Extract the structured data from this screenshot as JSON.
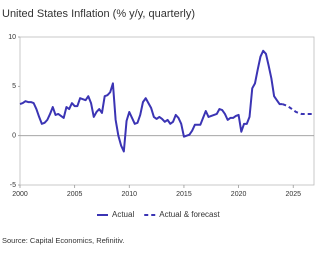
{
  "chart_data": {
    "type": "line",
    "title": "United States Inflation (% y/y, quarterly)",
    "source": "Source: Capital Economics, Refinitiv.",
    "x": [
      2000,
      2000.25,
      2000.5,
      2000.75,
      2001,
      2001.25,
      2001.5,
      2001.75,
      2002,
      2002.25,
      2002.5,
      2002.75,
      2003,
      2003.25,
      2003.5,
      2003.75,
      2004,
      2004.25,
      2004.5,
      2004.75,
      2005,
      2005.25,
      2005.5,
      2005.75,
      2006,
      2006.25,
      2006.5,
      2006.75,
      2007,
      2007.25,
      2007.5,
      2007.75,
      2008,
      2008.25,
      2008.5,
      2008.75,
      2009,
      2009.25,
      2009.5,
      2009.75,
      2010,
      2010.25,
      2010.5,
      2010.75,
      2011,
      2011.25,
      2011.5,
      2011.75,
      2012,
      2012.25,
      2012.5,
      2012.75,
      2013,
      2013.25,
      2013.5,
      2013.75,
      2014,
      2014.25,
      2014.5,
      2014.75,
      2015,
      2015.25,
      2015.5,
      2015.75,
      2016,
      2016.25,
      2016.5,
      2016.75,
      2017,
      2017.25,
      2017.5,
      2017.75,
      2018,
      2018.25,
      2018.5,
      2018.75,
      2019,
      2019.25,
      2019.5,
      2019.75,
      2020,
      2020.25,
      2020.5,
      2020.75,
      2021,
      2021.25,
      2021.5,
      2021.75,
      2022,
      2022.25,
      2022.5,
      2022.75,
      2023,
      2023.25,
      2023.5,
      2023.75,
      2024,
      2024.25,
      2024.5,
      2024.75,
      2025,
      2025.25,
      2025.5,
      2025.75,
      2026,
      2026.25,
      2026.5,
      2026.75
    ],
    "series": [
      {
        "name": "Actual",
        "color": "#3b34b4",
        "style": "solid",
        "values": [
          3.2,
          3.3,
          3.5,
          3.4,
          3.4,
          3.3,
          2.7,
          1.9,
          1.2,
          1.3,
          1.6,
          2.2,
          2.9,
          2.1,
          2.2,
          2.0,
          1.8,
          2.9,
          2.7,
          3.3,
          3.0,
          3.0,
          3.8,
          3.7,
          3.6,
          4.0,
          3.3,
          1.9,
          2.4,
          2.7,
          2.3,
          4.0,
          4.1,
          4.4,
          5.3,
          1.6,
          0.0,
          -1.0,
          -1.6,
          1.5,
          2.4,
          1.8,
          1.2,
          1.3,
          2.1,
          3.4,
          3.8,
          3.3,
          2.8,
          1.9,
          1.7,
          1.9,
          1.7,
          1.4,
          1.6,
          1.2,
          1.4,
          2.1,
          1.8,
          1.2,
          -0.1,
          0.0,
          0.1,
          0.5,
          1.1,
          1.1,
          1.1,
          1.8,
          2.5,
          1.9,
          2.0,
          2.1,
          2.2,
          2.7,
          2.6,
          2.2,
          1.6,
          1.8,
          1.8,
          2.0,
          2.1,
          0.4,
          1.2,
          1.2,
          1.9,
          4.8,
          5.3,
          6.7,
          8.0,
          8.6,
          8.3,
          7.1,
          5.8,
          4.0,
          3.6,
          3.2,
          3.2,
          null,
          null,
          null,
          null,
          null,
          null,
          null,
          null,
          null,
          null,
          null
        ]
      },
      {
        "name": "Actual & forecast",
        "color": "#3b34b4",
        "style": "dashed",
        "values": [
          null,
          null,
          null,
          null,
          null,
          null,
          null,
          null,
          null,
          null,
          null,
          null,
          null,
          null,
          null,
          null,
          null,
          null,
          null,
          null,
          null,
          null,
          null,
          null,
          null,
          null,
          null,
          null,
          null,
          null,
          null,
          null,
          null,
          null,
          null,
          null,
          null,
          null,
          null,
          null,
          null,
          null,
          null,
          null,
          null,
          null,
          null,
          null,
          null,
          null,
          null,
          null,
          null,
          null,
          null,
          null,
          null,
          null,
          null,
          null,
          null,
          null,
          null,
          null,
          null,
          null,
          null,
          null,
          null,
          null,
          null,
          null,
          null,
          null,
          null,
          null,
          null,
          null,
          null,
          null,
          null,
          null,
          null,
          null,
          null,
          null,
          null,
          null,
          null,
          null,
          null,
          null,
          null,
          null,
          null,
          null,
          3.2,
          3.1,
          3.0,
          2.8,
          2.6,
          2.4,
          2.3,
          2.2,
          2.2,
          2.2,
          2.2,
          2.2
        ]
      }
    ],
    "xlim": [
      2000,
      2026.9
    ],
    "xticks": [
      2000,
      2005,
      2010,
      2015,
      2020,
      2025
    ],
    "ylim": [
      -5,
      10
    ],
    "yticks": [
      -5,
      0,
      5,
      10
    ],
    "zero_line": true,
    "legend": "bottom"
  }
}
